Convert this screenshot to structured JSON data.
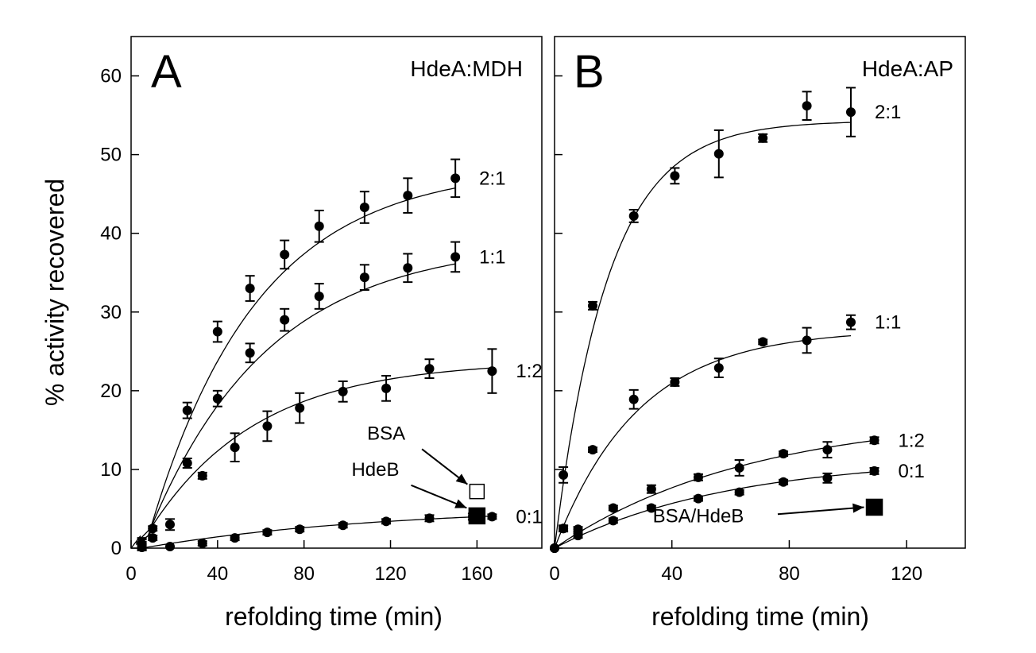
{
  "colors": {
    "ink": "#000000",
    "background": "#ffffff"
  },
  "shared_ylabel": "% activity recovered",
  "chart_data": [
    {
      "type": "scatter",
      "panel_letter": "A",
      "title": "HdeA:MDH",
      "xlabel": "refolding time (min)",
      "ylabel": "% activity recovered",
      "xlim": [
        0,
        190
      ],
      "ylim": [
        0,
        65
      ],
      "xticks": [
        0,
        40,
        80,
        120,
        160
      ],
      "yticks": [
        0,
        10,
        20,
        30,
        40,
        50,
        60
      ],
      "grid": false,
      "series": [
        {
          "name": "2:1",
          "x": [
            5,
            10,
            26,
            40,
            55,
            71,
            87,
            108,
            128,
            150
          ],
          "y": [
            0.5,
            2.5,
            17.5,
            27.5,
            33,
            37.3,
            40.9,
            43.3,
            44.8,
            47
          ],
          "err": [
            0.8,
            0.3,
            1.0,
            1.3,
            1.6,
            1.8,
            2.0,
            2.0,
            2.2,
            2.4
          ],
          "fit": {
            "plateau": 48.5,
            "k": 0.02,
            "t0": 9,
            "start": 2.3,
            "end": 150
          }
        },
        {
          "name": "1:1",
          "x": [
            5,
            10,
            26,
            40,
            55,
            71,
            87,
            108,
            128,
            150
          ],
          "y": [
            0.3,
            1.3,
            10.8,
            19,
            24.8,
            29,
            32,
            34.4,
            35.6,
            37
          ],
          "err": [
            0.5,
            0.3,
            0.6,
            1.0,
            1.2,
            1.4,
            1.6,
            1.6,
            1.8,
            1.9
          ],
          "fit": {
            "plateau": 39,
            "k": 0.018,
            "t0": 9,
            "start": 2.3,
            "end": 150
          }
        },
        {
          "name": "1:2",
          "x": [
            5,
            18,
            33,
            48,
            63,
            78,
            98,
            118,
            138,
            167
          ],
          "y": [
            0.5,
            3,
            9.2,
            12.8,
            15.5,
            17.8,
            19.9,
            20.3,
            22.8,
            22.5
          ],
          "err": [
            0.6,
            0.7,
            0.4,
            1.8,
            1.9,
            1.9,
            1.3,
            1.6,
            1.2,
            2.8
          ],
          "fit": {
            "plateau": 23.8,
            "k": 0.02,
            "t0": 9,
            "start": 2.3,
            "end": 167
          }
        },
        {
          "name": "0:1",
          "x": [
            5,
            18,
            33,
            48,
            63,
            78,
            98,
            118,
            138,
            158,
            167
          ],
          "y": [
            0.1,
            0.2,
            0.6,
            1.3,
            2,
            2.4,
            2.9,
            3.4,
            3.8,
            4,
            4
          ],
          "err": [
            0.2,
            0.2,
            0.3,
            0.3,
            0.3,
            0.3,
            0.3,
            0.3,
            0.4,
            0.4,
            0.3
          ],
          "fit": {
            "plateau": 5.3,
            "k": 0.009,
            "t0": 5,
            "start": 0,
            "end": 167
          }
        }
      ],
      "markers": [
        {
          "name": "BSA",
          "x": 160,
          "y": 7.2,
          "filled": false,
          "label_x": 118,
          "label_y": 13.8
        },
        {
          "name": "HdeB",
          "x": 160,
          "y": 4.1,
          "filled": true,
          "label_x": 113,
          "label_y": 9.2
        }
      ]
    },
    {
      "type": "scatter",
      "panel_letter": "B",
      "title": "HdeA:AP",
      "xlabel": "refolding time (min)",
      "ylabel": "% activity recovered",
      "xlim": [
        0,
        140
      ],
      "ylim": [
        0,
        65
      ],
      "xticks": [
        0,
        40,
        80,
        120
      ],
      "yticks": [
        0,
        10,
        20,
        30,
        40,
        50,
        60
      ],
      "grid": false,
      "series": [
        {
          "name": "2:1",
          "x": [
            0,
            3,
            13,
            27,
            41,
            56,
            71,
            86,
            101
          ],
          "y": [
            0,
            9.3,
            30.8,
            42.2,
            47.3,
            50.1,
            52.1,
            56.2,
            55.4
          ],
          "err": [
            0,
            1.0,
            0.5,
            0.8,
            1.0,
            3.0,
            0.5,
            1.8,
            3.1
          ],
          "fit": {
            "plateau": 54.3,
            "k": 0.055,
            "t0": 0,
            "start": 0,
            "end": 101
          }
        },
        {
          "name": "1:1",
          "x": [
            0,
            3,
            13,
            27,
            41,
            56,
            71,
            86,
            101
          ],
          "y": [
            0,
            2.5,
            12.5,
            18.9,
            21.1,
            22.9,
            26.2,
            26.4,
            28.7
          ],
          "err": [
            0,
            0.4,
            0.3,
            1.2,
            0.5,
            1.2,
            0.3,
            1.6,
            0.9
          ],
          "fit": {
            "plateau": 27.8,
            "k": 0.035,
            "t0": 0,
            "start": 0,
            "end": 101
          }
        },
        {
          "name": "1:2",
          "x": [
            0,
            3,
            8,
            20,
            33,
            49,
            63,
            78,
            93,
            109
          ],
          "y": [
            0,
            2.5,
            2.4,
            5.1,
            7.5,
            9,
            10.2,
            12,
            12.5,
            13.7
          ],
          "err": [
            0,
            0.3,
            0.3,
            0.3,
            0.5,
            0.4,
            1.0,
            0.3,
            1.0,
            0.4
          ],
          "fit": {
            "plateau": 17,
            "k": 0.015,
            "t0": 0,
            "start": 0,
            "end": 109
          }
        },
        {
          "name": "0:1",
          "x": [
            0,
            8,
            20,
            33,
            49,
            63,
            78,
            93,
            109
          ],
          "y": [
            0,
            1.6,
            3.5,
            5.1,
            6.3,
            7.1,
            8.4,
            8.9,
            9.8
          ],
          "err": [
            0,
            0.3,
            0.3,
            0.3,
            0.3,
            0.3,
            0.3,
            0.6,
            0.4
          ],
          "fit": {
            "plateau": 11.5,
            "k": 0.017,
            "t0": 0,
            "start": 0,
            "end": 109
          }
        }
      ],
      "markers": [
        {
          "name": "BSA/HdeB",
          "x": 109,
          "y": 5.2,
          "filled": true,
          "label_x": 49,
          "label_y": 3.3
        }
      ]
    }
  ]
}
